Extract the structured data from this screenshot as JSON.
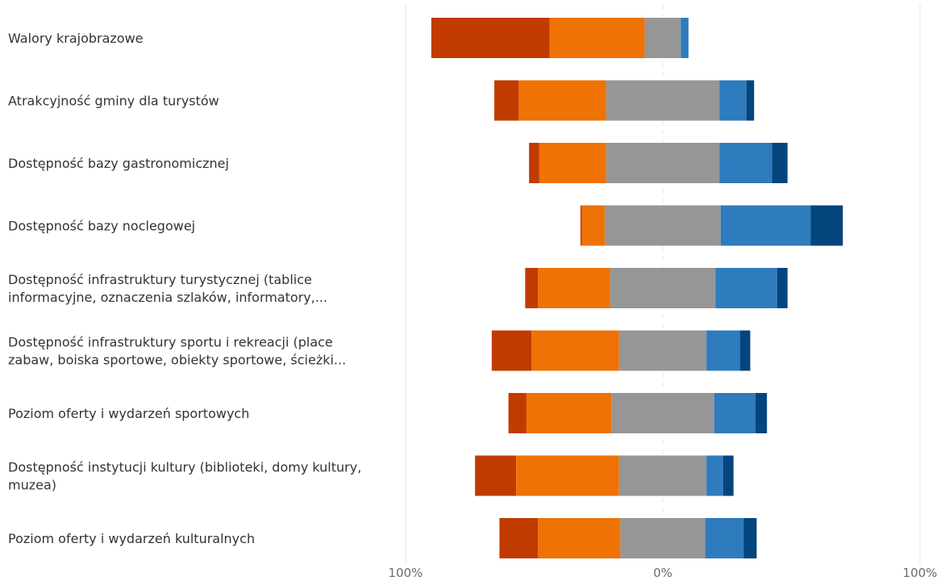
{
  "chart_data": {
    "type": "bar",
    "subtype": "diverging-stacked",
    "categories": [
      [
        "Walory krajobrazowe"
      ],
      [
        "Atrakcyjność gminy dla turystów"
      ],
      [
        "Dostępność bazy gastronomicznej"
      ],
      [
        "Dostępność bazy noclegowej"
      ],
      [
        "Dostępność infrastruktury turystycznej (tablice",
        "informacyjne, oznaczenia szlaków, informatory,..."
      ],
      [
        "Dostępność infrastruktury sportu i rekreacji (place",
        "zabaw, boiska sportowe, obiekty sportowe, ścieżki..."
      ],
      [
        "Poziom oferty i wydarzeń sportowych"
      ],
      [
        "Dostępność instytucji kultury (biblioteki, domy kultury,",
        "muzea)"
      ],
      [
        "Poziom oferty i wydarzeń kulturalnych"
      ]
    ],
    "series": [
      {
        "color": "#c13b00",
        "side": "negative",
        "values": [
          46,
          9.5,
          4,
          0.5,
          5,
          15.5,
          7,
          16,
          15
        ]
      },
      {
        "color": "#ee7204",
        "side": "negative",
        "values": [
          37,
          34,
          26,
          9,
          28,
          34,
          33,
          40,
          32
        ]
      },
      {
        "color": "#969696",
        "side": "neutral",
        "values": [
          14,
          44,
          44,
          45,
          41,
          34,
          40,
          34,
          33
        ]
      },
      {
        "color": "#2e7bbd",
        "side": "positive",
        "values": [
          3,
          10.5,
          20.5,
          35,
          24,
          13,
          16,
          6.5,
          15
        ]
      },
      {
        "color": "#04457e",
        "side": "positive",
        "values": [
          0,
          3,
          6,
          12.5,
          4,
          4,
          4.5,
          4,
          5
        ]
      }
    ],
    "x_ticks": [
      "100%",
      "0%",
      "100%"
    ],
    "xlim": [
      -100,
      100
    ],
    "grid": true,
    "legend": "none"
  }
}
